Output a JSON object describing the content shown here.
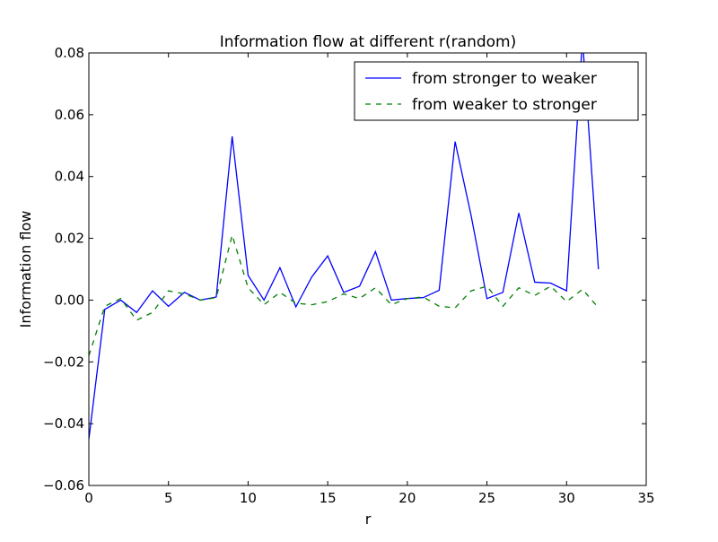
{
  "chart_data": {
    "type": "line",
    "title": "Information flow at different r(random)",
    "xlabel": "r",
    "ylabel": "Information flow",
    "xlim": [
      0,
      35
    ],
    "ylim": [
      -0.06,
      0.08
    ],
    "xticks": [
      0,
      5,
      10,
      15,
      20,
      25,
      30,
      35
    ],
    "xtick_labels": [
      "0",
      "5",
      "10",
      "15",
      "20",
      "25",
      "30",
      "35"
    ],
    "yticks": [
      -0.06,
      -0.04,
      -0.02,
      0.0,
      0.02,
      0.04,
      0.06,
      0.08
    ],
    "ytick_labels": [
      "−0.06",
      "−0.04",
      "−0.02",
      "0.00",
      "0.02",
      "0.04",
      "0.06",
      "0.08"
    ],
    "grid": false,
    "legend_position": "top-right",
    "x": [
      0,
      1,
      2,
      3,
      4,
      5,
      6,
      7,
      8,
      9,
      10,
      11,
      12,
      13,
      14,
      15,
      16,
      17,
      18,
      19,
      20,
      21,
      22,
      23,
      24,
      25,
      26,
      27,
      28,
      29,
      30,
      31,
      32
    ],
    "series": [
      {
        "name": "from stronger to weaker",
        "color": "#0000ff",
        "style": "solid",
        "values": [
          -0.045,
          -0.003,
          0.0,
          -0.004,
          0.003,
          -0.002,
          0.0025,
          0.0,
          0.001,
          0.053,
          0.008,
          0.0,
          0.0105,
          -0.0022,
          0.0075,
          0.0143,
          0.0025,
          0.0045,
          0.0157,
          0.0,
          0.0005,
          0.0008,
          0.0032,
          0.0513,
          0.0275,
          0.0005,
          0.0025,
          0.0282,
          0.0058,
          0.0055,
          0.003,
          0.0845,
          0.01
        ]
      },
      {
        "name": "from weaker to stronger",
        "color": "#008000",
        "style": "dashed",
        "values": [
          -0.018,
          -0.002,
          0.0005,
          -0.0065,
          -0.004,
          0.003,
          0.002,
          0.0,
          0.0008,
          0.021,
          0.004,
          -0.0015,
          0.0025,
          -0.001,
          -0.0015,
          -0.0005,
          0.002,
          0.0005,
          0.004,
          -0.0015,
          0.0005,
          0.001,
          -0.002,
          -0.0025,
          0.003,
          0.0045,
          -0.002,
          0.004,
          0.0015,
          0.0045,
          -0.0005,
          0.0035,
          -0.0025
        ]
      }
    ]
  }
}
